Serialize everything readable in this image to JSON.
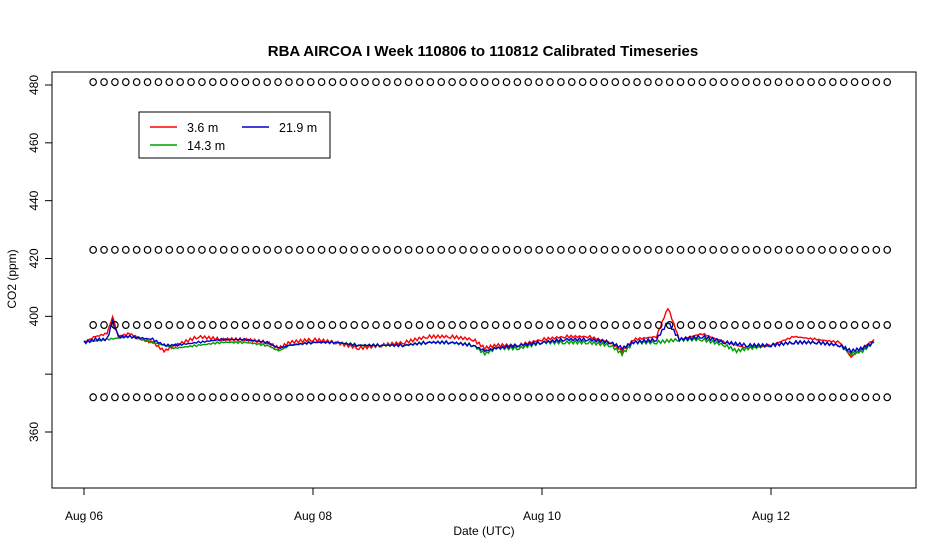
{
  "chart_data": {
    "type": "line",
    "title": "RBA AIRCOA I  Week 110806 to 110812  Calibrated Timeseries",
    "xlabel": "Date (UTC)",
    "ylabel": "CO2 (ppm)",
    "x_ticks": [
      "Aug 06",
      "Aug 08",
      "Aug 10",
      "Aug 12"
    ],
    "x_tick_days": [
      0,
      2,
      4,
      6
    ],
    "xlim_days": [
      -0.28,
      7.0
    ],
    "y_ticks": [
      360,
      380,
      400,
      420,
      440,
      460,
      480
    ],
    "y_tick_labels": [
      "360",
      "",
      "400",
      "420",
      "440",
      "460",
      "480"
    ],
    "ylim": [
      350,
      486
    ],
    "grid": false,
    "legend_position": "top-left",
    "series": [
      {
        "name": "3.6 m",
        "color": "#ff0000",
        "x_days": [
          0,
          0.1,
          0.2,
          0.25,
          0.3,
          0.4,
          0.5,
          0.6,
          0.7,
          0.8,
          1.0,
          1.2,
          1.4,
          1.6,
          1.7,
          1.8,
          2.0,
          2.2,
          2.4,
          2.6,
          2.8,
          3.0,
          3.2,
          3.4,
          3.5,
          3.6,
          3.8,
          4.0,
          4.2,
          4.4,
          4.6,
          4.7,
          4.8,
          5.0,
          5.1,
          5.2,
          5.4,
          5.6,
          5.8,
          6.0,
          6.2,
          6.4,
          6.6,
          6.7,
          6.8,
          6.9
        ],
        "values": [
          391,
          393,
          394,
          400,
          393,
          394,
          392,
          391,
          388,
          390,
          393,
          392,
          392,
          391,
          389,
          391,
          392,
          391,
          389,
          390,
          391,
          393,
          393,
          392,
          389,
          390,
          390,
          392,
          393,
          393,
          391,
          388,
          392,
          393,
          403,
          392,
          394,
          391,
          389,
          390,
          393,
          392,
          391,
          386,
          389,
          392
        ]
      },
      {
        "name": "14.3 m",
        "color": "#00a000",
        "x_days": [
          0,
          0.2,
          0.4,
          0.6,
          0.8,
          1.0,
          1.2,
          1.4,
          1.6,
          1.7,
          1.8,
          2.0,
          2.2,
          2.4,
          2.6,
          2.8,
          3.0,
          3.2,
          3.4,
          3.5,
          3.6,
          3.8,
          4.0,
          4.2,
          4.4,
          4.6,
          4.7,
          4.8,
          5.0,
          5.2,
          5.4,
          5.6,
          5.7,
          5.8,
          6.0,
          6.2,
          6.4,
          6.6,
          6.7,
          6.8,
          6.9
        ],
        "values": [
          391,
          392,
          393,
          391,
          389,
          390,
          391,
          391,
          390,
          388,
          390,
          391,
          391,
          390,
          390,
          390,
          391,
          391,
          390,
          387,
          389,
          389,
          391,
          391,
          391,
          390,
          387,
          391,
          391,
          392,
          392,
          390,
          388,
          389,
          390,
          391,
          391,
          390,
          387,
          388,
          391
        ]
      },
      {
        "name": "21.9 m",
        "color": "#0000cc",
        "x_days": [
          0,
          0.1,
          0.2,
          0.25,
          0.3,
          0.4,
          0.6,
          0.7,
          0.8,
          1.0,
          1.2,
          1.4,
          1.6,
          1.7,
          1.8,
          2.0,
          2.2,
          2.4,
          2.6,
          2.8,
          3.0,
          3.2,
          3.4,
          3.5,
          3.6,
          3.8,
          4.0,
          4.2,
          4.4,
          4.6,
          4.7,
          4.8,
          5.0,
          5.1,
          5.2,
          5.4,
          5.6,
          5.8,
          6.0,
          6.2,
          6.4,
          6.6,
          6.7,
          6.8,
          6.9
        ],
        "values": [
          391,
          392,
          392,
          398,
          393,
          393,
          392,
          390,
          390,
          391,
          392,
          392,
          391,
          389,
          390,
          391,
          391,
          390,
          390,
          390,
          391,
          391,
          390,
          388,
          389,
          390,
          391,
          392,
          392,
          391,
          389,
          391,
          392,
          398,
          392,
          393,
          391,
          390,
          390,
          391,
          391,
          390,
          388,
          389,
          391
        ]
      }
    ],
    "calibration_markers": {
      "symbol": "o",
      "levels": [
        481,
        423,
        397,
        372
      ],
      "spacing_days": 0.095,
      "x_start_days": 0.08,
      "x_end_days": 7.05
    }
  }
}
